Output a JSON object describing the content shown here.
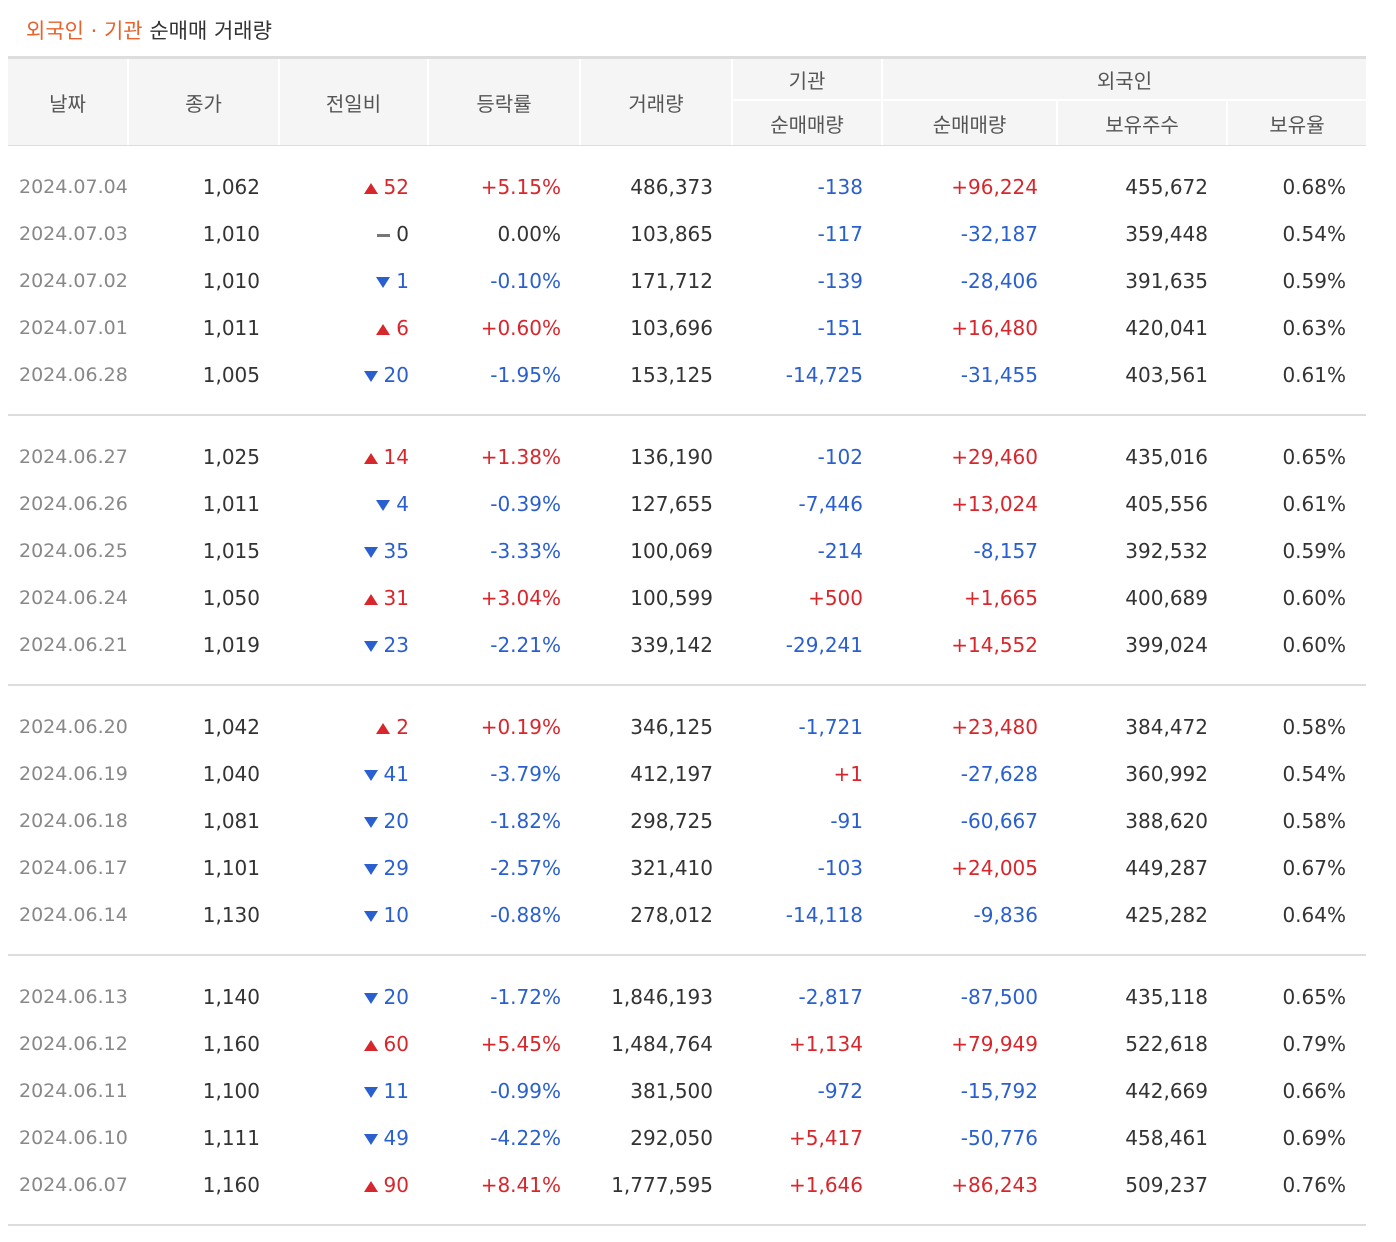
{
  "header": {
    "title_highlight": "외국인 · 기관",
    "title": "순매매 거래량"
  },
  "table": {
    "columns": {
      "date": "날짜",
      "close": "종가",
      "change": "전일비",
      "rate": "등락률",
      "volume": "거래량",
      "inst": "기관",
      "inst_net": "순매매량",
      "foreign": "외국인",
      "foreign_net": "순매매량",
      "foreign_shares": "보유주수",
      "foreign_ratio": "보유율"
    },
    "groups": [
      [
        [
          "2024.07.04",
          "1,062",
          "52",
          "+5.15%",
          "486,373",
          "-138",
          "+96,224",
          "455,672",
          "0.68%"
        ],
        [
          "2024.07.03",
          "1,010",
          "0",
          "0.00%",
          "103,865",
          "-117",
          "-32,187",
          "359,448",
          "0.54%"
        ],
        [
          "2024.07.02",
          "1,010",
          "1",
          "-0.10%",
          "171,712",
          "-139",
          "-28,406",
          "391,635",
          "0.59%"
        ],
        [
          "2024.07.01",
          "1,011",
          "6",
          "+0.60%",
          "103,696",
          "-151",
          "+16,480",
          "420,041",
          "0.63%"
        ],
        [
          "2024.06.28",
          "1,005",
          "20",
          "-1.95%",
          "153,125",
          "-14,725",
          "-31,455",
          "403,561",
          "0.61%"
        ]
      ],
      [
        [
          "2024.06.27",
          "1,025",
          "14",
          "+1.38%",
          "136,190",
          "-102",
          "+29,460",
          "435,016",
          "0.65%"
        ],
        [
          "2024.06.26",
          "1,011",
          "4",
          "-0.39%",
          "127,655",
          "-7,446",
          "+13,024",
          "405,556",
          "0.61%"
        ],
        [
          "2024.06.25",
          "1,015",
          "35",
          "-3.33%",
          "100,069",
          "-214",
          "-8,157",
          "392,532",
          "0.59%"
        ],
        [
          "2024.06.24",
          "1,050",
          "31",
          "+3.04%",
          "100,599",
          "+500",
          "+1,665",
          "400,689",
          "0.60%"
        ],
        [
          "2024.06.21",
          "1,019",
          "23",
          "-2.21%",
          "339,142",
          "-29,241",
          "+14,552",
          "399,024",
          "0.60%"
        ]
      ],
      [
        [
          "2024.06.20",
          "1,042",
          "2",
          "+0.19%",
          "346,125",
          "-1,721",
          "+23,480",
          "384,472",
          "0.58%"
        ],
        [
          "2024.06.19",
          "1,040",
          "41",
          "-3.79%",
          "412,197",
          "+1",
          "-27,628",
          "360,992",
          "0.54%"
        ],
        [
          "2024.06.18",
          "1,081",
          "20",
          "-1.82%",
          "298,725",
          "-91",
          "-60,667",
          "388,620",
          "0.58%"
        ],
        [
          "2024.06.17",
          "1,101",
          "29",
          "-2.57%",
          "321,410",
          "-103",
          "+24,005",
          "449,287",
          "0.67%"
        ],
        [
          "2024.06.14",
          "1,130",
          "10",
          "-0.88%",
          "278,012",
          "-14,118",
          "-9,836",
          "425,282",
          "0.64%"
        ]
      ],
      [
        [
          "2024.06.13",
          "1,140",
          "20",
          "-1.72%",
          "1,846,193",
          "-2,817",
          "-87,500",
          "435,118",
          "0.65%"
        ],
        [
          "2024.06.12",
          "1,160",
          "60",
          "+5.45%",
          "1,484,764",
          "+1,134",
          "+79,949",
          "522,618",
          "0.79%"
        ],
        [
          "2024.06.11",
          "1,100",
          "11",
          "-0.99%",
          "381,500",
          "-972",
          "-15,792",
          "442,669",
          "0.66%"
        ],
        [
          "2024.06.10",
          "1,111",
          "49",
          "-4.22%",
          "292,050",
          "+5,417",
          "-50,776",
          "458,461",
          "0.69%"
        ],
        [
          "2024.06.07",
          "1,160",
          "90",
          "+8.41%",
          "1,777,595",
          "+1,646",
          "+86,243",
          "509,237",
          "0.76%"
        ]
      ]
    ]
  }
}
